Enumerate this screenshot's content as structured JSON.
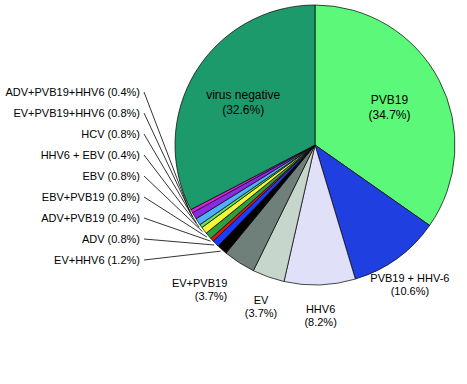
{
  "chart_data": {
    "type": "pie",
    "categories": [
      "PVB19",
      "PVB19 + HHV-6",
      "HHV6",
      "EV",
      "EV+PVB19",
      "EV+HHV6",
      "ADV",
      "ADV+PVB19",
      "EBV+PVB19",
      "EBV",
      "HHV6 + EBV",
      "HCV",
      "EV+PVB19+HHV6",
      "ADV+PVB19+HHV6",
      "virus negative"
    ],
    "values": [
      34.7,
      10.6,
      8.2,
      3.7,
      3.7,
      1.2,
      0.8,
      0.4,
      0.8,
      0.8,
      0.4,
      0.8,
      0.8,
      0.4,
      32.6
    ],
    "value_labels": [
      "(34.7%)",
      "(10.6%)",
      "(8.2%)",
      "(3.7%)",
      "(3.7%)",
      "(1.2%)",
      "(0.8%)",
      "(0.4%)",
      "(0.8%)",
      "(0.8%)",
      "(0.4%)",
      "(0.8%)",
      "(0.8%)",
      "(0.4%)",
      "(32.6%)"
    ],
    "colors": [
      "#5cf87a",
      "#1f3fe0",
      "#e0e0f8",
      "#c6d6cc",
      "#6f7f7a",
      "#000000",
      "#1a3cff",
      "#e8140f",
      "#2e9e3e",
      "#f5f53a",
      "#5fe05f",
      "#50b0ff",
      "#8a2be2",
      "#e020e0",
      "#1d9a6c"
    ],
    "data_labels": true
  }
}
